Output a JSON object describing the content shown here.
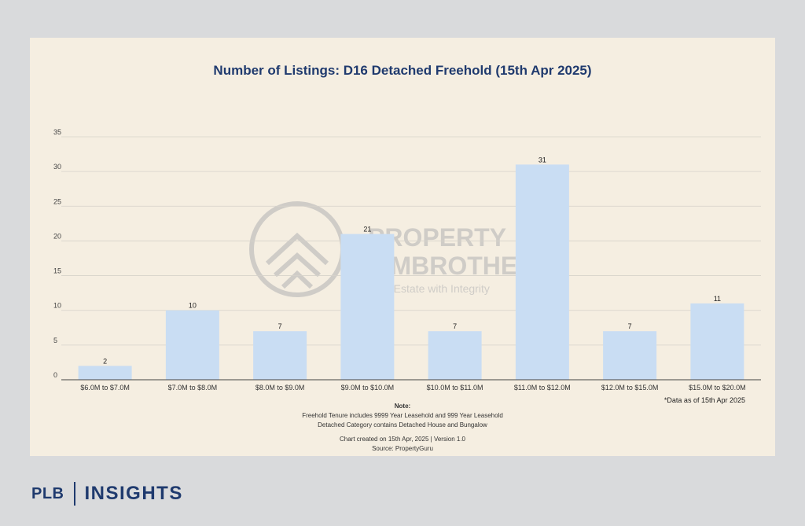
{
  "title": "Number of Listings: D16 Detached Freehold (15th Apr 2025)",
  "watermark": {
    "line1": "PROPERTY",
    "line2": "LIMBROTHERS",
    "line3": "Real Estate with Integrity"
  },
  "data_note": "*Data as of 15th Apr 2025",
  "notes": {
    "heading": "Note:",
    "line1": "Freehold Tenure includes 9999 Year Leasehold and 999 Year Leasehold",
    "line2": "Detached Category contains Detached House and Bungalow",
    "created": "Chart created on 15th Apr, 2025 | Version 1.0",
    "source": "Source: PropertyGuru"
  },
  "brand": {
    "left": "PLB",
    "right": "INSIGHTS"
  },
  "colors": {
    "bar": "#c9ddf3",
    "title": "#1f3a6e",
    "grid": "#d6d2ca"
  },
  "chart_data": {
    "type": "bar",
    "categories": [
      "$6.0M to $7.0M",
      "$7.0M to $8.0M",
      "$8.0M to $9.0M",
      "$9.0M to $10.0M",
      "$10.0M to $11.0M",
      "$11.0M to $12.0M",
      "$12.0M to $15.0M",
      "$15.0M to $20.0M"
    ],
    "values": [
      2,
      10,
      7,
      21,
      7,
      31,
      7,
      11
    ],
    "yticks": [
      0,
      5,
      10,
      15,
      20,
      25,
      30,
      35
    ],
    "ylim": [
      0,
      35
    ],
    "grid": true,
    "data_labels": true
  }
}
